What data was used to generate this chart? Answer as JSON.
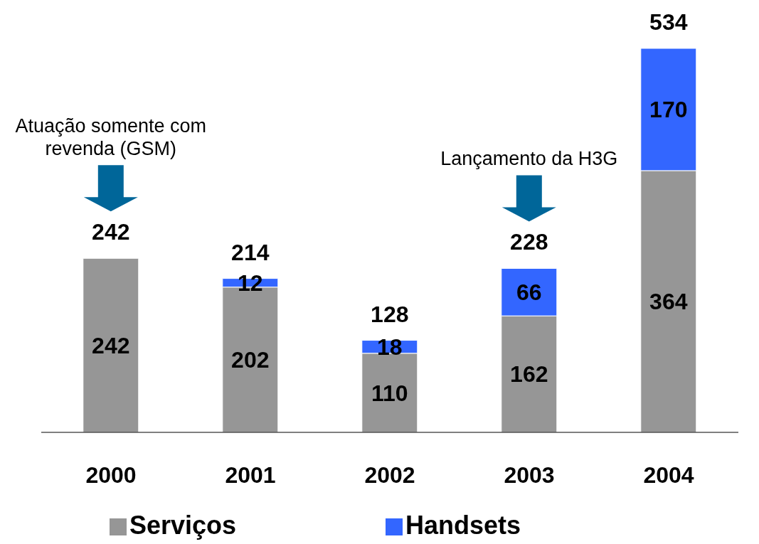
{
  "chart_data": {
    "type": "bar",
    "stacked": true,
    "categories": [
      "2000",
      "2001",
      "2002",
      "2003",
      "2004"
    ],
    "series": [
      {
        "name": "Serviços",
        "color": "#969696",
        "values": [
          242,
          202,
          110,
          162,
          364
        ]
      },
      {
        "name": "Handsets",
        "color": "#3366ff",
        "values": [
          null,
          12,
          18,
          66,
          170
        ]
      }
    ],
    "totals": [
      "242",
      "214",
      "128",
      "228",
      "534"
    ],
    "data_labels": true,
    "legend": "bottom",
    "annotations": [
      "Atuação somente com revenda (GSM)",
      "Lançamento da H3G"
    ]
  }
}
